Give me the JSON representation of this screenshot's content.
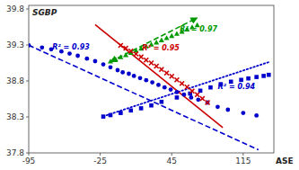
{
  "chart_data": {
    "type": "scatter",
    "xlabel": "ASE",
    "ylabel": "SGBP",
    "xlim": [
      -95,
      145
    ],
    "ylim": [
      37.8,
      39.85
    ],
    "xticks": [
      -95,
      -25,
      45,
      115
    ],
    "yticks": [
      37.8,
      38.3,
      38.8,
      39.3,
      39.8
    ],
    "series": [
      {
        "type": "line",
        "color": "#0000cc",
        "line_style": "dashed",
        "x": [
          -95,
          130
        ],
        "values": [
          39.2967,
          37.8432
        ]
      },
      {
        "type": "line",
        "color": "#0000cc",
        "line_style": "dotted",
        "x": [
          -22,
          140
        ],
        "values": [
          38.3077,
          39.061
        ]
      },
      {
        "type": "line",
        "color": "#009900",
        "line_style": "dashed",
        "marker": "arrow",
        "x": [
          -15,
          70
        ],
        "values": [
          39.0673,
          39.6776
        ]
      },
      {
        "type": "line",
        "color": "#cc0000",
        "line_style": "solid",
        "x": [
          -30,
          95
        ],
        "values": [
          39.5815,
          38.15025
        ]
      },
      {
        "type": "scatter",
        "color": "#0000cc",
        "marker": "circle",
        "x": [
          -95,
          -82,
          -73,
          -63,
          -55,
          -47,
          -38,
          -30,
          -22,
          -15,
          -8,
          -3,
          3,
          8,
          14,
          20,
          26,
          32,
          38,
          44,
          50,
          57,
          64,
          71,
          80,
          90,
          100,
          115,
          128
        ],
        "values": [
          39.295,
          39.265,
          39.24,
          39.21,
          39.18,
          39.15,
          39.11,
          39.075,
          39.03,
          38.99,
          38.95,
          38.92,
          38.9,
          38.87,
          38.84,
          38.81,
          38.78,
          38.745,
          38.71,
          38.68,
          38.645,
          38.61,
          38.57,
          38.54,
          38.5,
          38.44,
          38.4,
          38.355,
          38.32
        ]
      },
      {
        "type": "scatter",
        "color": "#0000cc",
        "marker": "square",
        "x": [
          -22,
          -15,
          -5,
          5,
          15,
          25,
          35,
          50,
          63,
          73,
          83,
          93,
          103,
          113,
          120,
          128,
          135,
          140
        ],
        "values": [
          38.305,
          38.325,
          38.355,
          38.39,
          38.42,
          38.46,
          38.51,
          38.57,
          38.625,
          38.665,
          38.71,
          38.755,
          38.79,
          38.815,
          38.835,
          38.855,
          38.87,
          38.885
        ]
      },
      {
        "type": "scatter",
        "color": "#009900",
        "marker": "triangle",
        "x": [
          -15,
          -10,
          -5,
          0,
          5,
          10,
          15,
          20,
          25,
          30,
          35,
          40,
          45,
          50,
          55,
          60,
          65,
          70
        ],
        "values": [
          39.07,
          39.1,
          39.13,
          39.16,
          39.19,
          39.22,
          39.25,
          39.28,
          39.305,
          39.335,
          39.365,
          39.395,
          39.425,
          39.455,
          39.485,
          39.515,
          39.545,
          39.575
        ]
      },
      {
        "type": "scatter",
        "color": "#cc0000",
        "marker": "x",
        "x": [
          -5,
          0,
          5,
          10,
          15,
          20,
          25,
          30,
          35,
          40,
          45,
          50,
          55,
          60,
          65,
          70,
          75,
          80
        ],
        "values": [
          39.295,
          39.255,
          39.215,
          39.175,
          39.135,
          39.09,
          39.05,
          39.005,
          38.96,
          38.91,
          38.865,
          38.815,
          38.765,
          38.715,
          38.66,
          38.61,
          38.555,
          38.5
        ]
      }
    ],
    "annotations": [
      {
        "text": "R² = 0.93",
        "x": -72,
        "y": 39.24,
        "color": "#0000cc"
      },
      {
        "text": "R² = 0.94",
        "x": 90,
        "y": 38.69,
        "color": "#0000cc"
      },
      {
        "text": "R² = 0.97",
        "x": 53,
        "y": 39.49,
        "color": "#009900"
      },
      {
        "text": "R² = 0.95",
        "x": 16,
        "y": 39.22,
        "color": "#cc0000"
      }
    ]
  }
}
